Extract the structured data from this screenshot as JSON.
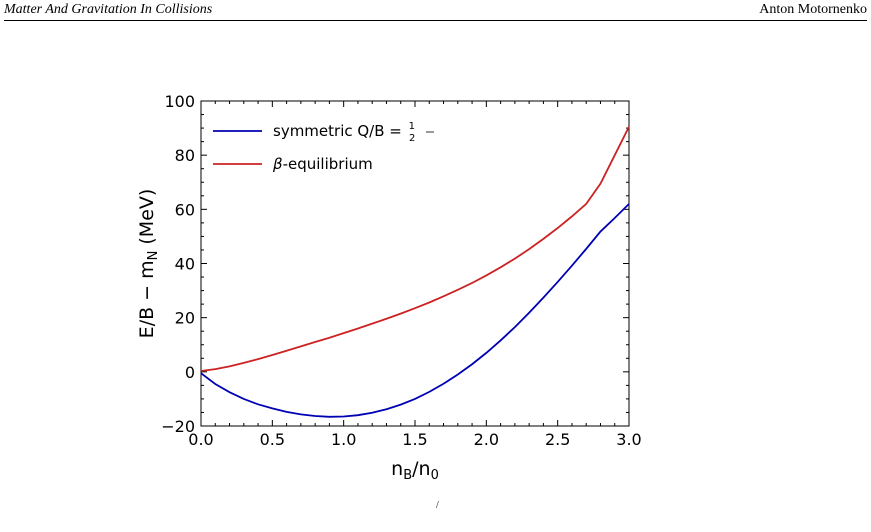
{
  "header": {
    "title": "Matter And Gravitation In Collisions",
    "author": "Anton Motornenko"
  },
  "caption_fragment": "/",
  "chart_data": {
    "type": "line",
    "xlabel": "n_B/n_0",
    "ylabel": "E/B − m_N (MeV)",
    "xlim": [
      0.0,
      3.0
    ],
    "ylim": [
      -20,
      100
    ],
    "xticks": [
      "0.0",
      "0.5",
      "1.0",
      "1.5",
      "2.0",
      "2.5",
      "3.0"
    ],
    "yticks": [
      "−20",
      "0",
      "20",
      "40",
      "60",
      "80",
      "100"
    ],
    "grid": false,
    "legend_position": "top-left",
    "series": [
      {
        "name": "symmetric Q/B = 1/2",
        "color": "#0000b3",
        "x": [
          0.0,
          0.1,
          0.2,
          0.3,
          0.4,
          0.5,
          0.6,
          0.7,
          0.8,
          0.9,
          1.0,
          1.1,
          1.2,
          1.3,
          1.4,
          1.5,
          1.6,
          1.7,
          1.8,
          1.9,
          2.0,
          2.1,
          2.2,
          2.3,
          2.4,
          2.5,
          2.6,
          2.7,
          2.8,
          2.9,
          3.0
        ],
        "y": [
          -0.5,
          -4.5,
          -7.5,
          -10.0,
          -12.0,
          -13.5,
          -14.8,
          -15.7,
          -16.3,
          -16.6,
          -16.5,
          -16.0,
          -15.1,
          -13.8,
          -12.1,
          -10.0,
          -7.4,
          -4.4,
          -1.0,
          2.8,
          7.0,
          11.6,
          16.5,
          21.8,
          27.4,
          33.2,
          39.2,
          45.4,
          51.8,
          56.8,
          62.0
        ]
      },
      {
        "name": "β-equilibrium",
        "color": "#cc2222",
        "x": [
          0.0,
          0.1,
          0.2,
          0.3,
          0.4,
          0.5,
          0.6,
          0.7,
          0.8,
          0.9,
          1.0,
          1.1,
          1.2,
          1.3,
          1.4,
          1.5,
          1.6,
          1.7,
          1.8,
          1.9,
          2.0,
          2.1,
          2.2,
          2.3,
          2.4,
          2.5,
          2.6,
          2.7,
          2.8,
          2.9,
          3.0
        ],
        "y": [
          0.3,
          1.0,
          2.0,
          3.3,
          4.7,
          6.2,
          7.8,
          9.4,
          11.0,
          12.6,
          14.3,
          16.0,
          17.8,
          19.6,
          21.5,
          23.5,
          25.6,
          27.9,
          30.3,
          32.8,
          35.6,
          38.6,
          41.8,
          45.3,
          49.1,
          53.1,
          57.4,
          62.0,
          69.5,
          80.0,
          90.5
        ]
      }
    ]
  }
}
